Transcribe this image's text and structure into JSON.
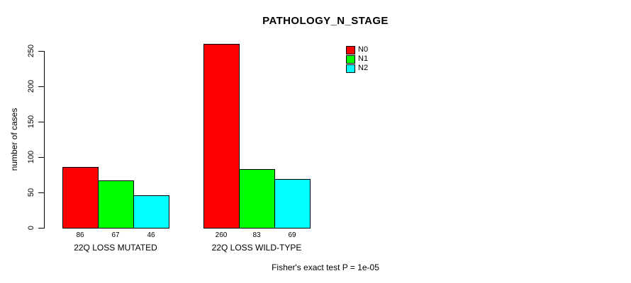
{
  "chart_data": {
    "type": "bar",
    "title": "PATHOLOGY_N_STAGE",
    "xlabel": "",
    "ylabel": "number of cases",
    "categories": [
      "22Q LOSS MUTATED",
      "22Q LOSS WILD-TYPE"
    ],
    "series": [
      {
        "name": "N0",
        "color": "#ff0000",
        "values": [
          86,
          260
        ]
      },
      {
        "name": "N1",
        "color": "#00ff00",
        "values": [
          67,
          83
        ]
      },
      {
        "name": "N2",
        "color": "#00ffff",
        "values": [
          46,
          69
        ]
      }
    ],
    "value_labels": [
      [
        86,
        67,
        46
      ],
      [
        260,
        83,
        69
      ]
    ],
    "ylim": [
      0,
      250
    ],
    "yticks": [
      "0",
      "50",
      "100",
      "150",
      "200",
      "250"
    ],
    "grid": false,
    "legend_position": "top-right",
    "legend_labels": [
      "N0",
      "N1",
      "N2"
    ],
    "annotation": "Fisher's exact test P = 1e-05"
  },
  "colors": {
    "background": "#ffffff",
    "axis": "#000000",
    "bar_border": "#000000",
    "text": "#000000"
  }
}
